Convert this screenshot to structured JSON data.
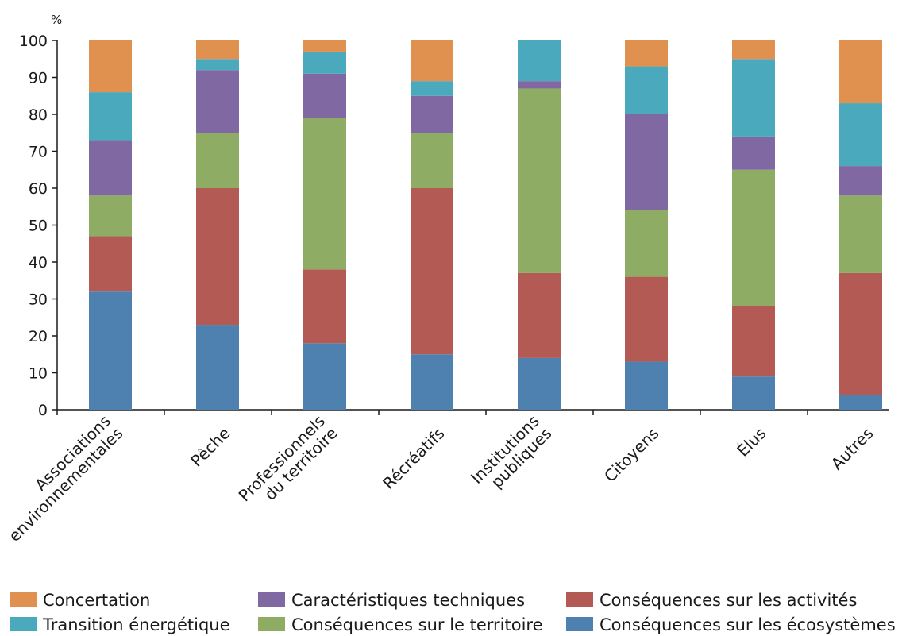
{
  "chart_data": {
    "type": "bar",
    "stacked": true,
    "unit_label": "%",
    "ylim": [
      0,
      100
    ],
    "yticks": [
      0,
      10,
      20,
      30,
      40,
      50,
      60,
      70,
      80,
      90,
      100
    ],
    "categories": [
      [
        "Associations",
        "environnementales"
      ],
      [
        "Pêche"
      ],
      [
        "Professionnels",
        "du territoire"
      ],
      [
        "Récréatifs"
      ],
      [
        "Institutions",
        "publiques"
      ],
      [
        "Citoyens"
      ],
      [
        "Élus"
      ],
      [
        "Autres"
      ]
    ],
    "series": [
      {
        "name": "Conséquences sur les écosystèmes",
        "color": "#4f81b0",
        "values": [
          32,
          23,
          18,
          15,
          14,
          13,
          9,
          4
        ]
      },
      {
        "name": "Conséquences sur les activités",
        "color": "#b35a55",
        "values": [
          15,
          37,
          20,
          45,
          23,
          23,
          19,
          33
        ]
      },
      {
        "name": "Conséquences sur le territoire",
        "color": "#8fac64",
        "values": [
          11,
          15,
          41,
          15,
          50,
          18,
          37,
          21
        ]
      },
      {
        "name": "Caractéristiques techniques",
        "color": "#8069a3",
        "values": [
          15,
          17,
          12,
          10,
          2,
          26,
          9,
          8
        ]
      },
      {
        "name": "Transition énergétique",
        "color": "#4aa9bd",
        "values": [
          13,
          3,
          6,
          4,
          11,
          13,
          21,
          17
        ]
      },
      {
        "name": "Concertation",
        "color": "#e0914f",
        "values": [
          14,
          5,
          3,
          11,
          0,
          7,
          5,
          17
        ]
      }
    ],
    "legend_order": [
      "Concertation",
      "Caractéristiques techniques",
      "Conséquences sur les activités",
      "Transition énergétique",
      "Conséquences sur le territoire",
      "Conséquences sur les écosystèmes"
    ],
    "legend_position": "bottom",
    "grid": false
  }
}
